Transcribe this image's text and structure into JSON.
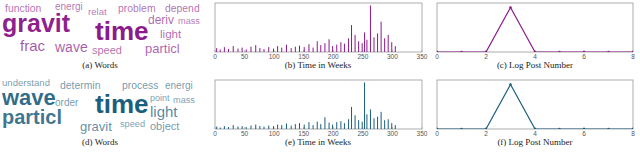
{
  "chart_data": [
    {
      "type": "wordcloud",
      "title": "(a) Words",
      "categories": [
        "time",
        "gravit",
        "frac",
        "wave",
        "particl",
        "deriv",
        "light",
        "speed",
        "function",
        "problem",
        "depend",
        "energi",
        "relat",
        "mass"
      ],
      "values": [
        100,
        95,
        45,
        40,
        35,
        30,
        28,
        25,
        22,
        22,
        22,
        20,
        18,
        16
      ],
      "color": "#8b1a8b"
    },
    {
      "type": "bar",
      "title": "(b) Time in Weeks",
      "x": [
        2,
        8,
        15,
        22,
        30,
        38,
        45,
        52,
        60,
        68,
        75,
        82,
        90,
        98,
        105,
        112,
        120,
        128,
        135,
        142,
        150,
        158,
        165,
        172,
        178,
        185,
        192,
        198,
        205,
        212,
        218,
        225,
        230,
        236,
        242,
        248,
        252,
        256,
        262,
        268,
        274,
        280,
        286,
        292,
        298,
        304
      ],
      "values": [
        8,
        5,
        10,
        6,
        12,
        7,
        9,
        5,
        11,
        14,
        8,
        6,
        10,
        7,
        12,
        9,
        15,
        8,
        11,
        13,
        10,
        16,
        9,
        22,
        14,
        18,
        26,
        12,
        15,
        20,
        17,
        28,
        55,
        35,
        22,
        18,
        40,
        25,
        95,
        30,
        38,
        62,
        28,
        35,
        20,
        12
      ],
      "xlim": [
        0,
        350
      ],
      "xticks": [
        0,
        50,
        100,
        150,
        200,
        250,
        300,
        350
      ],
      "ylim": [
        0,
        100
      ],
      "color": "#8b1a8b",
      "tick_labels": "x"
    },
    {
      "type": "line",
      "title": "(c) Log Post Number",
      "x": [
        0,
        1,
        2,
        3,
        4,
        5,
        6,
        7,
        8
      ],
      "values": [
        0,
        0,
        0,
        1,
        0,
        0,
        0,
        0,
        0
      ],
      "xlim": [
        0,
        8
      ],
      "xticks": [
        0,
        2,
        4,
        6,
        8
      ],
      "ylim": [
        0,
        1.1
      ],
      "color": "#8b1a8b",
      "marker": "circle",
      "tick_labels": "x"
    },
    {
      "type": "wordcloud",
      "title": "(d) Words",
      "categories": [
        "time",
        "wave",
        "particl",
        "light",
        "gravit",
        "object",
        "determin",
        "process",
        "energi",
        "order",
        "understand",
        "speed",
        "mass",
        "point"
      ],
      "values": [
        100,
        80,
        70,
        45,
        35,
        25,
        22,
        22,
        20,
        20,
        18,
        16,
        16,
        15
      ],
      "color": "#1b5e7e"
    },
    {
      "type": "bar",
      "title": "(e) Time in Weeks",
      "x": [
        2,
        8,
        15,
        22,
        30,
        38,
        45,
        52,
        60,
        68,
        75,
        82,
        90,
        98,
        105,
        112,
        120,
        128,
        135,
        142,
        150,
        158,
        165,
        172,
        178,
        185,
        192,
        198,
        205,
        212,
        218,
        225,
        230,
        236,
        242,
        248,
        252,
        256,
        262,
        268,
        274,
        280,
        286,
        292,
        298,
        304
      ],
      "values": [
        5,
        3,
        6,
        4,
        8,
        5,
        6,
        4,
        7,
        9,
        6,
        5,
        7,
        6,
        9,
        8,
        11,
        7,
        10,
        12,
        9,
        14,
        8,
        15,
        10,
        24,
        13,
        9,
        14,
        16,
        12,
        20,
        45,
        28,
        18,
        15,
        95,
        30,
        40,
        22,
        25,
        35,
        18,
        20,
        12,
        8
      ],
      "xlim": [
        0,
        350
      ],
      "xticks": [
        0,
        50,
        100,
        150,
        200,
        250,
        300,
        350
      ],
      "ylim": [
        0,
        100
      ],
      "color": "#1b5e7e",
      "tick_labels": "x"
    },
    {
      "type": "line",
      "title": "(f) Log Post Number",
      "x": [
        0,
        1,
        2,
        3,
        4,
        5,
        6,
        7,
        8
      ],
      "values": [
        0,
        0,
        0,
        1,
        0,
        0,
        0,
        0,
        0
      ],
      "xlim": [
        0,
        8
      ],
      "xticks": [
        0,
        2,
        4,
        6,
        8
      ],
      "ylim": [
        0,
        1.1
      ],
      "color": "#1b5e7e",
      "marker": "circle",
      "tick_labels": "x"
    }
  ]
}
